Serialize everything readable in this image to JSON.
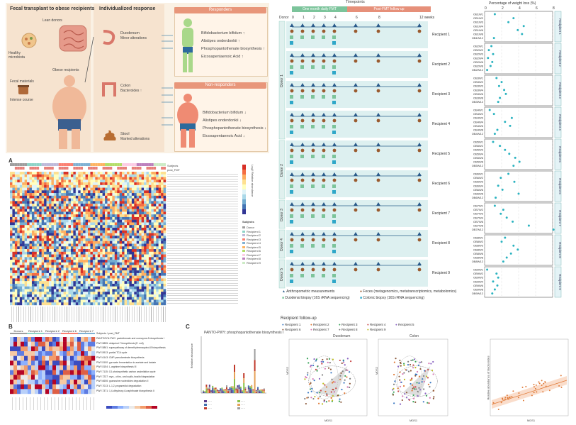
{
  "panelTop": {
    "col1_title": "Fecal transplant to obese recipients",
    "col2_title": "Individualized response",
    "lean_donors": "Lean donors",
    "healthy_microbiota": "Healthy\nmicrobiota",
    "fecal_materials": "Fecal materials",
    "intense_course": "Intense course",
    "obese_recipients": "Obese recipients",
    "duodenum": "Duodenum",
    "duodenum_sub": "Minor alterations",
    "colon": "Colon",
    "colon_sub": "Bacteroides ↑",
    "stool": "Stool",
    "stool_sub": "Marked alterations",
    "responders_title": "Responders",
    "nonresponders_title": "Non-responders",
    "responder_items": [
      "Bifidobacterium bifidum ↑",
      "Alistipes onderdonkii ↑",
      "Phosphopantothenate biosynthesis ↑",
      "Eicosapentaenoic Acid ↑"
    ],
    "nonresponder_items": [
      "Bifidobacterium bifidum ↓",
      "Alistipes onderdonkii ↓",
      "Phosphopantothenate biosynthesis ↓",
      "Eicosapentaenoic Acid ↓"
    ]
  },
  "timeline": {
    "timepoints_label": "Timepoints",
    "fmt_label": "One month daily FMT",
    "follow_label": "Post-FMT follow up",
    "donor_label": "Donor",
    "weeks": [
      "0",
      "1",
      "2",
      "3",
      "4",
      "6",
      "8",
      "12 weeks"
    ],
    "donors": [
      "Donor 1",
      "Donor 2",
      "Donor 3",
      "Donor 4",
      "Donor 5"
    ],
    "recipients": [
      "Recipient 1",
      "Recipient 2",
      "Recipient 3",
      "Recipient 4",
      "Recipient 5",
      "Recipient 6",
      "Recipient 7",
      "Recipient 8",
      "Recipient 9"
    ],
    "legend": [
      "Anthropometric measurements",
      "Feces (metagenomics, metatranscriptomics, metabolomics)",
      "Duodenal biopsy (16S rRNA sequencing)",
      "Colonic biopsy (16S rRNA sequencing)"
    ]
  },
  "weightloss": {
    "title": "Percentage of weight loss (%)",
    "ticks": [
      "0",
      "2",
      "4",
      "6",
      "8"
    ],
    "groups": [
      {
        "label": "Recipient 1",
        "rows": [
          "OB1W1",
          "OB1W2",
          "OB1W3",
          "OB1W4",
          "OB1W6",
          "OB1W8",
          "OB1W12"
        ],
        "vals": [
          1.2,
          3.4,
          2.8,
          4.6,
          3.9,
          4.4,
          1.1
        ]
      },
      {
        "label": "Recipient 2",
        "rows": [
          "OB2W1",
          "OB2W2",
          "OB2W3",
          "OB2W4",
          "OB2W6",
          "OB2W8",
          "OB2W12"
        ],
        "vals": [
          0.8,
          0.5,
          1.0,
          0.4,
          0.9,
          0.7,
          0.3
        ]
      },
      {
        "label": "Recipient 3",
        "rows": [
          "OB3W1",
          "OB3W2",
          "OB3W3",
          "OB3W4",
          "OB3W6",
          "OB3W8",
          "OB3W12"
        ],
        "vals": [
          1.4,
          2.0,
          1.7,
          2.3,
          2.5,
          1.8,
          1.6
        ]
      },
      {
        "label": "Recipient 4",
        "rows": [
          "OB4W1",
          "OB4W2",
          "OB4W3",
          "OB4W4",
          "OB4W6",
          "OB4W8",
          "OB4W12"
        ],
        "vals": [
          0.6,
          1.1,
          3.2,
          2.4,
          3.0,
          1.5,
          1.2
        ]
      },
      {
        "label": "Recipient 5",
        "rows": [
          "OB5W1",
          "OB5W2",
          "OB5W3",
          "OB5W4",
          "OB5W6",
          "OB5W8",
          "OB5W12"
        ],
        "vals": [
          1.0,
          1.8,
          2.4,
          2.9,
          3.6,
          4.1,
          3.4
        ]
      },
      {
        "label": "Recipient 6",
        "rows": [
          "OB6W1",
          "OB6W2",
          "OB6W3",
          "OB6W4",
          "OB6W6",
          "OB6W8",
          "OB6W12"
        ],
        "vals": [
          2.8,
          1.9,
          3.5,
          1.6,
          2.1,
          4.0,
          1.3
        ]
      },
      {
        "label": "Recipient 7",
        "rows": [
          "OB7W1",
          "OB7W2",
          "OB7W3",
          "OB7W4",
          "OB7W6",
          "OB7W8",
          "OB7W12"
        ],
        "vals": [
          1.2,
          2.2,
          1.9,
          2.6,
          3.3,
          5.2,
          8.1
        ]
      },
      {
        "label": "Recipient 8",
        "rows": [
          "OB8W1",
          "OB8W2",
          "OB8W3",
          "OB8W4",
          "OB8W6",
          "OB8W8",
          "OB8W12"
        ],
        "vals": [
          2.4,
          2.0,
          3.4,
          3.9,
          3.1,
          2.6,
          2.2
        ]
      },
      {
        "label": "Recipient 9",
        "rows": [
          "OB9W1",
          "OB9W2",
          "OB9W3",
          "OB9W4",
          "OB9W6",
          "OB9W8",
          "OB9W12"
        ],
        "vals": [
          0.3,
          1.4,
          1.6,
          1.0,
          1.5,
          1.2,
          0.9
        ]
      }
    ]
  },
  "heatmapA": {
    "label": "A",
    "legend_title": "Subjects",
    "legend_items": [
      "Donor",
      "Recipient 1",
      "Recipient 2",
      "Recipient 3",
      "Recipient 4",
      "Recipient 5",
      "Recipient 6",
      "Recipient 7",
      "Recipient 8",
      "Recipient 9"
    ],
    "top_labels": [
      "Subjects",
      "post_FMT"
    ],
    "scale_label": "Log2 Relative abundance"
  },
  "heatmapB": {
    "label": "B",
    "headers": [
      "Donors",
      "Recipient 1",
      "Recipient 2",
      "Recipient 6",
      "Recipient 7"
    ],
    "top_labels": [
      "Subjects",
      "post_FMT"
    ],
    "rows": [
      "PANTOSYN-PWY: pantothenate and coenzyme A biosynthesis I",
      "PWY-5855: ubiquinol-7 biosynthesis (E. coli)",
      "PWY-5861: superpathway of demethylmenaquinol-8 biosynthesis",
      "PWY-5913: partial TCA cycle",
      "PWY-6143: CMP-pseudaminate biosynthesis",
      "PWY-5100: pyruvate fermentation to acetate and lactate",
      "PWY-5154: L-arginine biosynthesis III",
      "PWY-7115: C4 photosynthetic carbon assimilation cycle",
      "PWY-7237: myo-, chiro- and scyllo-inositol degradation",
      "PWY-6606: guanosine nucleotides degradation II",
      "PWY-7013: L-1,2-propanediol degradation",
      "PWY-7371: 1,4-dihydroxy-6-naphthoate biosynthesis II"
    ]
  },
  "barC": {
    "label": "C",
    "title": "PANTO-PWY: phosphopantothenate biosynthesis I",
    "ylabel": "Relative abundance"
  },
  "ordination": {
    "title": "Recipient follow-up",
    "recipients": [
      "Recipient 1",
      "Recipient 2",
      "Recipient 3",
      "Recipient 4",
      "Recipient 5",
      "Recipient 6",
      "Recipient 7",
      "Recipient 8",
      "Recipient 9"
    ],
    "colors": [
      "#3a78c2",
      "#e07b39",
      "#3aa35a",
      "#c94a4a",
      "#8a63c2",
      "#8c5a3c",
      "#d77ab5",
      "#7f7f7f",
      "#bcbd22"
    ],
    "duodenum_title": "Duodenum",
    "colon_title": "Colon",
    "xlabel": "MDS1",
    "ylabel": "MDS2",
    "scatter_ylabel": "Relative abundance of Bacteroides"
  }
}
